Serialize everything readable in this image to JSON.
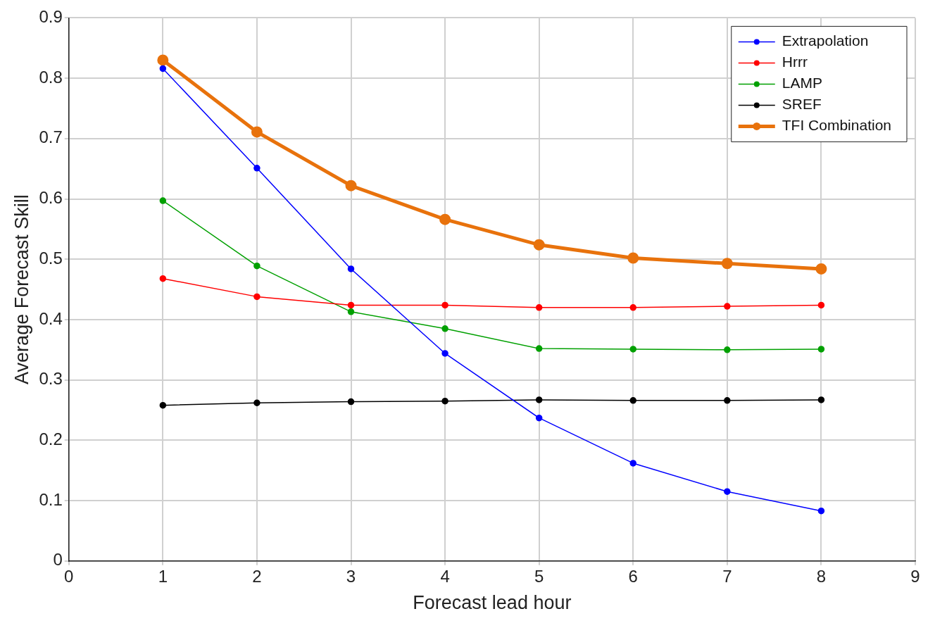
{
  "chart_data": {
    "type": "line",
    "xlabel": "Forecast lead hour",
    "ylabel": "Average Forecast Skill",
    "x": [
      1,
      2,
      3,
      4,
      5,
      6,
      7,
      8
    ],
    "series": [
      {
        "name": "Extrapolation",
        "color": "#0000ff",
        "values": [
          0.816,
          0.651,
          0.484,
          0.344,
          0.237,
          0.162,
          0.115,
          0.083
        ]
      },
      {
        "name": "Hrrr",
        "color": "#ff0000",
        "values": [
          0.468,
          0.438,
          0.424,
          0.424,
          0.42,
          0.42,
          0.422,
          0.424
        ]
      },
      {
        "name": "LAMP",
        "color": "#00a000",
        "values": [
          0.597,
          0.489,
          0.413,
          0.385,
          0.352,
          0.351,
          0.35,
          0.351
        ]
      },
      {
        "name": "SREF",
        "color": "#000000",
        "values": [
          0.258,
          0.262,
          0.264,
          0.265,
          0.267,
          0.266,
          0.266,
          0.267
        ]
      },
      {
        "name": "TFI Combination",
        "color": "#e8720c",
        "values": [
          0.83,
          0.711,
          0.622,
          0.566,
          0.524,
          0.502,
          0.493,
          0.484
        ]
      }
    ],
    "xlim": [
      0,
      9
    ],
    "xticks": [
      0,
      1,
      2,
      3,
      4,
      5,
      6,
      7,
      8,
      9
    ],
    "ylim": [
      0,
      0.9
    ],
    "yticks": [
      0,
      0.1,
      0.2,
      0.3,
      0.4,
      0.5,
      0.6,
      0.7,
      0.8,
      0.9
    ],
    "grid": true,
    "legend": "top right",
    "marker": "circle",
    "line_style": "solid"
  }
}
